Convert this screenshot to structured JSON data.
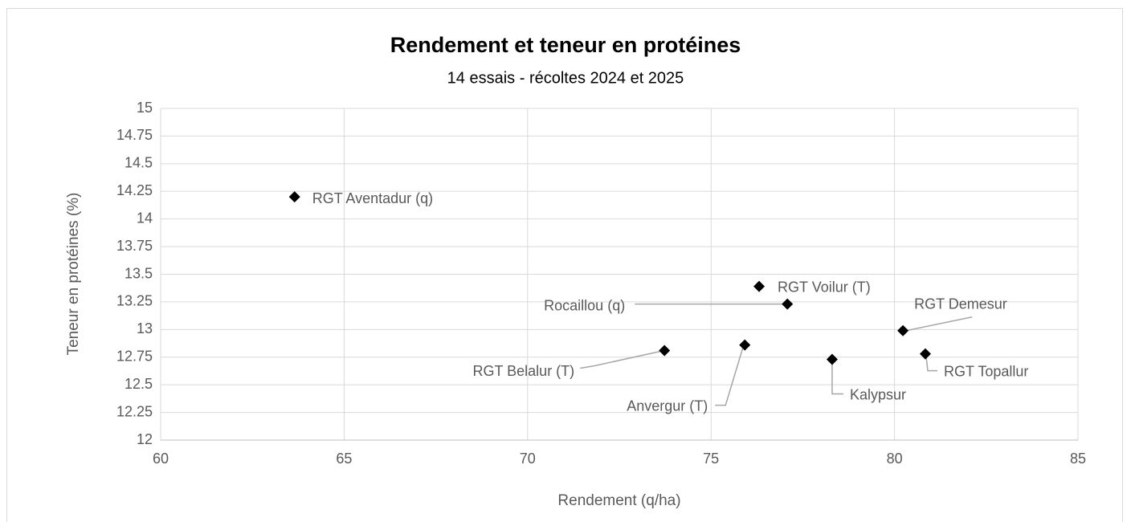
{
  "chart_data": {
    "type": "scatter",
    "title": "Rendement et teneur en protéines",
    "subtitle": "14 essais - récoltes 2024 et 2025",
    "x_label": "Rendement (q/ha)",
    "y_label": "Teneur en protéines (%)",
    "color": "#000000",
    "grid": true,
    "xlim": [
      60,
      85
    ],
    "xticks": [
      60,
      65,
      70,
      75,
      80,
      85
    ],
    "ylim": [
      12,
      15
    ],
    "yticks": [
      12,
      12.25,
      12.5,
      12.75,
      13,
      13.25,
      13.5,
      13.75,
      14,
      14.25,
      14.5,
      14.75,
      15
    ],
    "points": [
      {
        "label": "RGT Aventadur (q)",
        "x": 63.65,
        "y": 14.2
      },
      {
        "label": "RGT Voilur (T)",
        "x": 76.31,
        "y": 13.39
      },
      {
        "label": "Rocaillou (q)",
        "x": 77.08,
        "y": 13.23
      },
      {
        "label": "RGT Demesur",
        "x": 80.23,
        "y": 12.99
      },
      {
        "label": "RGT Belalur (T)",
        "x": 73.73,
        "y": 12.81
      },
      {
        "label": "Anvergur (T)",
        "x": 75.92,
        "y": 12.86
      },
      {
        "label": "Kalypsur",
        "x": 78.3,
        "y": 12.73
      },
      {
        "label": "RGT Topallur",
        "x": 80.84,
        "y": 12.78
      }
    ]
  }
}
